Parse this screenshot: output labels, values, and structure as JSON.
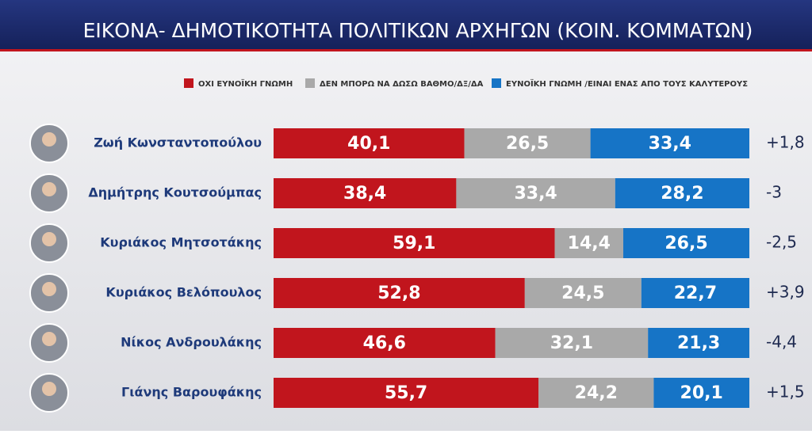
{
  "chart_data": {
    "type": "stacked-bar",
    "title": "ΕΙΚΟΝΑ- ΔΗΜΟΤΙΚΟΤΗΤΑ ΠΟΛΙΤΙΚΩΝ ΑΡΧΗΓΩΝ (ΚΟΙΝ. ΚΟΜΜΑΤΩΝ)",
    "categories": [
      "Ζωή Κωνσταντοπούλου",
      "Δημήτρης Κουτσούμπας",
      "Κυριάκος Μητσοτάκης",
      "Κυριάκος Βελόπουλος",
      "Νίκος Ανδρουλάκης",
      "Γιάνης Βαρουφάκης"
    ],
    "series": [
      {
        "name": "ΟΧΙ ΕΥΝΟΪΚΗ ΓΝΩΜΗ",
        "color": "#c1151d",
        "values": [
          40.1,
          38.4,
          59.1,
          52.8,
          46.6,
          55.7
        ],
        "value_labels": [
          "40,1",
          "38,4",
          "59,1",
          "52,8",
          "46,6",
          "55,7"
        ]
      },
      {
        "name": "ΔΕΝ ΜΠΟΡΩ ΝΑ ΔΩΣΩ ΒΑΘΜΟ/ΔΞ/ΔΑ",
        "color": "#a9a9a9",
        "values": [
          26.5,
          33.4,
          14.4,
          24.5,
          32.1,
          24.2
        ],
        "value_labels": [
          "26,5",
          "33,4",
          "14,4",
          "24,5",
          "32,1",
          "24,2"
        ]
      },
      {
        "name": "ΕΥΝΟΪΚΗ ΓΝΩΜΗ /ΕΙΝΑΙ ΕΝΑΣ ΑΠΟ ΤΟΥΣ ΚΑΛΥΤΕΡΟΥΣ",
        "color": "#1674c6",
        "values": [
          33.4,
          28.2,
          26.5,
          22.7,
          21.3,
          20.1
        ],
        "value_labels": [
          "33,4",
          "28,2",
          "26,5",
          "22,7",
          "21,3",
          "20,1"
        ]
      }
    ],
    "changes": [
      "+1,8",
      "-3",
      "-2,5",
      "+3,9",
      "-4,4",
      "+1,5"
    ]
  }
}
